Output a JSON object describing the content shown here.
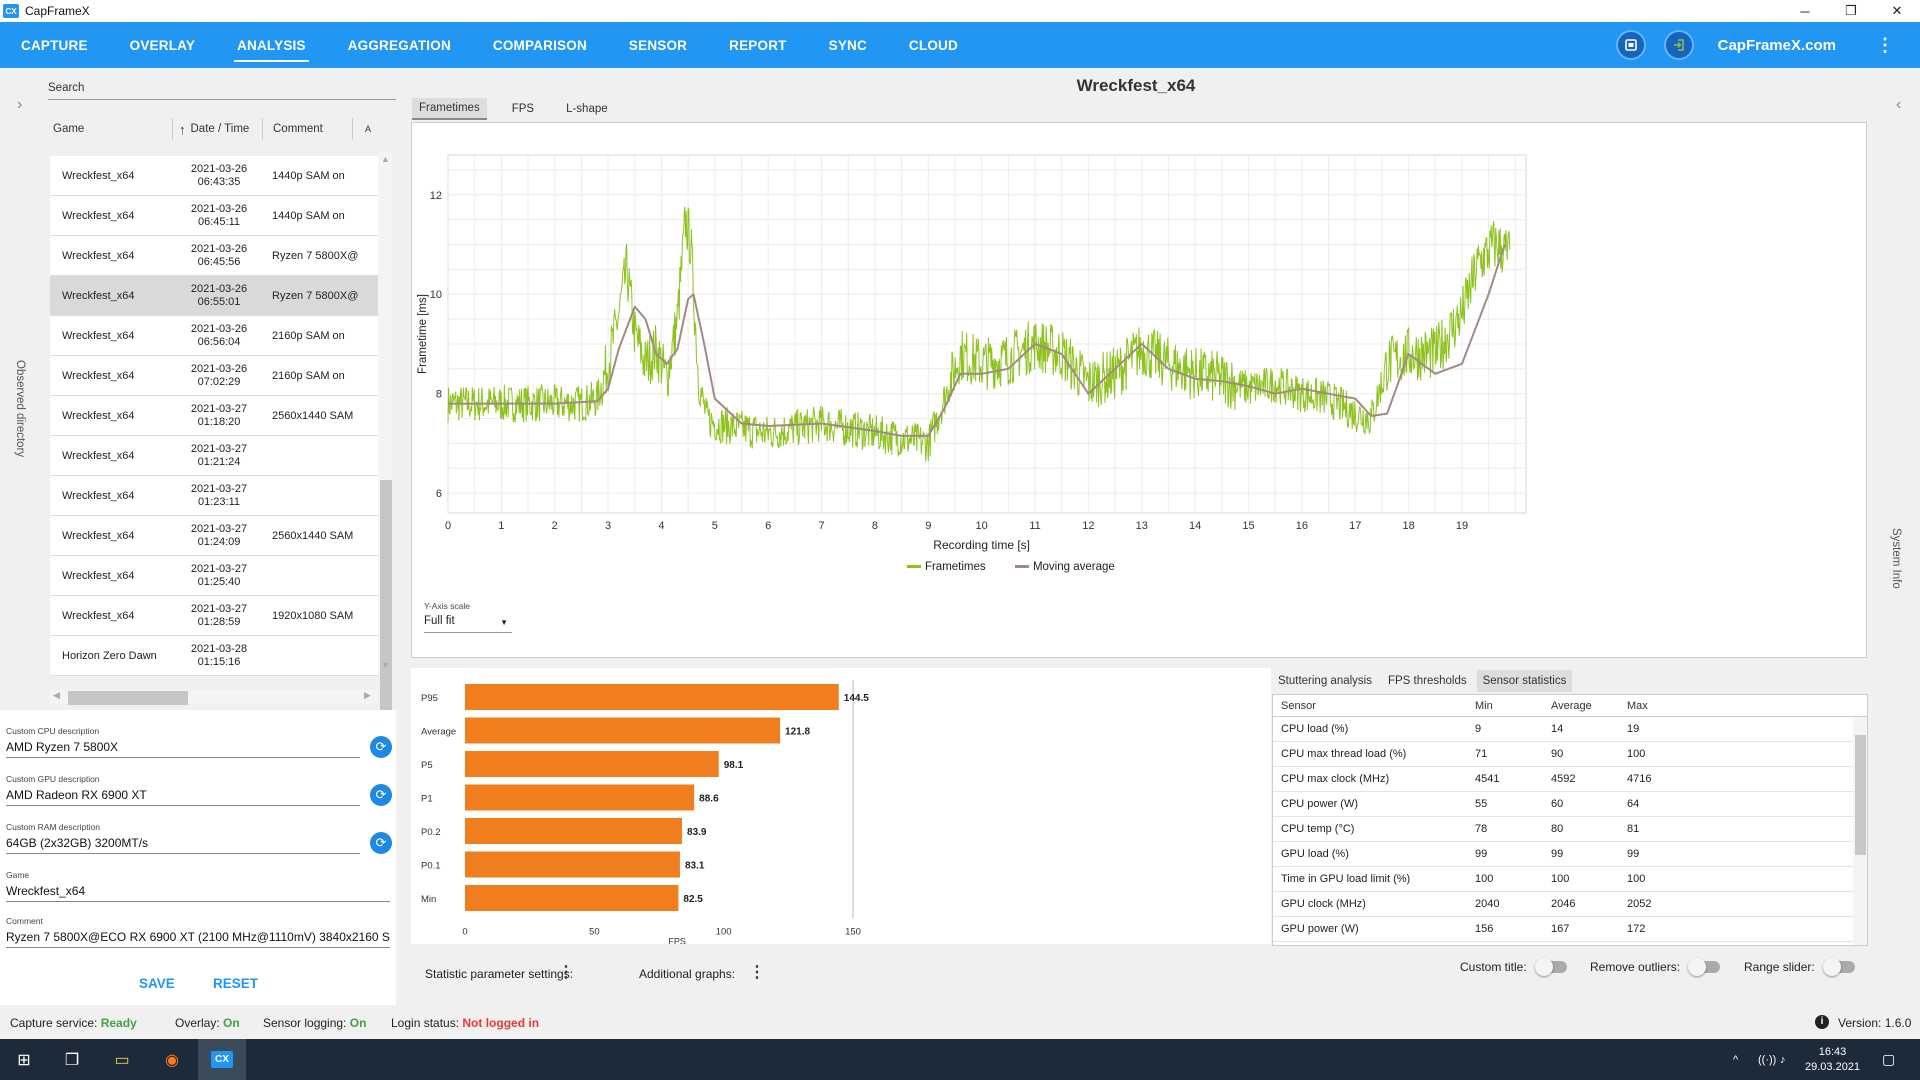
{
  "window": {
    "logo_text": "CX",
    "title": "CapFrameX",
    "min": "─",
    "max": "❐",
    "close": "✕"
  },
  "nav": {
    "tabs": [
      "CAPTURE",
      "OVERLAY",
      "ANALYSIS",
      "AGGREGATION",
      "COMPARISON",
      "SENSOR",
      "REPORT",
      "SYNC",
      "CLOUD"
    ],
    "active": "ANALYSIS",
    "site": "CapFrameX.com",
    "kebab": "⋮"
  },
  "left_strip": {
    "chevron": "›",
    "label": "Observed directory"
  },
  "right_strip": {
    "chevron": "‹",
    "label": "System Info"
  },
  "list": {
    "search_placeholder": "Search",
    "headers": {
      "game": "Game",
      "date": "Date / Time",
      "comment": "Comment",
      "more": "A",
      "sort_arrow": "↑"
    },
    "rows": [
      {
        "game": "Wreckfest_x64",
        "date": "2021-03-26",
        "time": "06:43:35",
        "comment": "1440p SAM on"
      },
      {
        "game": "Wreckfest_x64",
        "date": "2021-03-26",
        "time": "06:45:11",
        "comment": "1440p SAM on"
      },
      {
        "game": "Wreckfest_x64",
        "date": "2021-03-26",
        "time": "06:45:56",
        "comment": "Ryzen 7 5800X@"
      },
      {
        "game": "Wreckfest_x64",
        "date": "2021-03-26",
        "time": "06:55:01",
        "comment": "Ryzen 7 5800X@",
        "selected": true
      },
      {
        "game": "Wreckfest_x64",
        "date": "2021-03-26",
        "time": "06:56:04",
        "comment": "2160p SAM on"
      },
      {
        "game": "Wreckfest_x64",
        "date": "2021-03-26",
        "time": "07:02:29",
        "comment": "2160p SAM on"
      },
      {
        "game": "Wreckfest_x64",
        "date": "2021-03-27",
        "time": "01:18:20",
        "comment": "2560x1440 SAM"
      },
      {
        "game": "Wreckfest_x64",
        "date": "2021-03-27",
        "time": "01:21:24",
        "comment": ""
      },
      {
        "game": "Wreckfest_x64",
        "date": "2021-03-27",
        "time": "01:23:11",
        "comment": ""
      },
      {
        "game": "Wreckfest_x64",
        "date": "2021-03-27",
        "time": "01:24:09",
        "comment": "2560x1440 SAM"
      },
      {
        "game": "Wreckfest_x64",
        "date": "2021-03-27",
        "time": "01:25:40",
        "comment": ""
      },
      {
        "game": "Wreckfest_x64",
        "date": "2021-03-27",
        "time": "01:28:59",
        "comment": "1920x1080 SAM"
      },
      {
        "game": "Horizon Zero Dawn",
        "date": "2021-03-28",
        "time": "01:15:16",
        "comment": ""
      }
    ]
  },
  "form": {
    "cpu_label": "Custom CPU description",
    "cpu_value": "AMD Ryzen 7 5800X",
    "gpu_label": "Custom GPU description",
    "gpu_value": "AMD Radeon RX 6900 XT",
    "ram_label": "Custom RAM description",
    "ram_value": "64GB (2x32GB) 3200MT/s",
    "game_label": "Game",
    "game_value": "Wreckfest_x64",
    "comment_label": "Comment",
    "comment_value": "Ryzen 7 5800X@ECO RX 6900 XT (2100 MHz@1110mV) 3840x2160 SAM",
    "save": "SAVE",
    "reset": "RESET",
    "refresh_icon": "⟳"
  },
  "main": {
    "title": "Wreckfest_x64",
    "tabs": [
      "Frametimes",
      "FPS",
      "L-shape"
    ],
    "active_tab": "Frametimes",
    "yaxis_scale_label": "Y-Axis scale",
    "yaxis_scale_value": "Full fit"
  },
  "chart_data": [
    {
      "type": "line",
      "title": "",
      "xlabel": "Recording time [s]",
      "ylabel": "Frametime [ms]",
      "xlim": [
        0,
        20.2
      ],
      "ylim": [
        5.6,
        12.8
      ],
      "xticks": [
        0,
        1,
        2,
        3,
        4,
        5,
        6,
        7,
        8,
        9,
        10,
        11,
        12,
        13,
        14,
        15,
        16,
        17,
        18,
        19
      ],
      "yticks": [
        6,
        8,
        10,
        12
      ],
      "grid": true,
      "legend_position": "bottom-center",
      "series": [
        {
          "name": "Frametimes",
          "color": "#8dc21f",
          "x": [
            0,
            0.5,
            1,
            1.5,
            2,
            2.5,
            2.8,
            3.0,
            3.2,
            3.35,
            3.5,
            3.7,
            3.9,
            4.1,
            4.3,
            4.45,
            4.55,
            4.7,
            4.85,
            5.0,
            5.5,
            6,
            6.5,
            7,
            7.5,
            8,
            8.5,
            9.0,
            9.3,
            9.6,
            10,
            10.5,
            11,
            11.5,
            12,
            12.5,
            13,
            13.5,
            14,
            14.5,
            15,
            15.5,
            16,
            16.5,
            17,
            17.3,
            17.6,
            18,
            18.5,
            19,
            19.3,
            19.6,
            19.9
          ],
          "y": [
            7.8,
            7.8,
            7.8,
            7.8,
            7.8,
            7.8,
            7.9,
            8.6,
            9.6,
            10.5,
            9.2,
            8.6,
            8.9,
            8.3,
            9.5,
            11.5,
            11.0,
            8.2,
            7.5,
            7.4,
            7.3,
            7.2,
            7.3,
            7.4,
            7.3,
            7.2,
            7.1,
            7.0,
            7.9,
            8.8,
            8.6,
            8.7,
            9.0,
            8.8,
            8.2,
            8.4,
            8.9,
            8.6,
            8.4,
            8.3,
            8.1,
            8.2,
            8.0,
            7.9,
            7.6,
            7.5,
            8.6,
            8.8,
            8.8,
            9.6,
            10.6,
            11.0,
            10.8
          ]
        },
        {
          "name": "Moving average",
          "color": "#a18a84",
          "x": [
            0,
            1,
            2,
            2.8,
            3.0,
            3.2,
            3.5,
            3.7,
            3.9,
            4.1,
            4.3,
            4.5,
            4.6,
            4.8,
            5.0,
            5.5,
            6,
            7,
            8,
            8.5,
            9.0,
            9.3,
            9.6,
            10,
            10.5,
            11,
            11.5,
            12,
            12.5,
            13,
            13.5,
            14,
            14.5,
            15,
            15.5,
            16,
            16.5,
            17,
            17.3,
            17.6,
            18,
            18.5,
            19,
            19.5,
            19.8
          ],
          "y": [
            7.8,
            7.8,
            7.8,
            7.85,
            8.1,
            8.9,
            9.75,
            9.5,
            8.8,
            8.6,
            8.9,
            9.9,
            10.0,
            9.0,
            7.9,
            7.4,
            7.35,
            7.4,
            7.25,
            7.15,
            7.15,
            7.7,
            8.4,
            8.4,
            8.5,
            9.0,
            8.8,
            8.0,
            8.5,
            9.0,
            8.5,
            8.3,
            8.25,
            8.15,
            8.0,
            8.1,
            8.0,
            7.9,
            7.55,
            7.6,
            8.8,
            8.4,
            8.6,
            10.0,
            11.0
          ]
        }
      ]
    },
    {
      "type": "bar",
      "orientation": "horizontal",
      "title": "",
      "xlabel": "FPS",
      "xlim": [
        0,
        150
      ],
      "xticks": [
        0,
        50,
        100,
        150
      ],
      "categories": [
        "P95",
        "Average",
        "P5",
        "P1",
        "P0.2",
        "P0.1",
        "Min"
      ],
      "values": [
        144.5,
        121.8,
        98.1,
        88.6,
        83.9,
        83.1,
        82.5
      ],
      "color": "#f07d1e"
    }
  ],
  "stats": {
    "tabs": [
      "Stuttering analysis",
      "FPS thresholds",
      "Sensor statistics"
    ],
    "active_tab": "Sensor statistics",
    "headers": [
      "Sensor",
      "Min",
      "Average",
      "Max"
    ],
    "rows": [
      [
        "CPU load (%)",
        "9",
        "14",
        "19"
      ],
      [
        "CPU max thread load (%)",
        "71",
        "90",
        "100"
      ],
      [
        "CPU max clock (MHz)",
        "4541",
        "4592",
        "4716"
      ],
      [
        "CPU power (W)",
        "55",
        "60",
        "64"
      ],
      [
        "CPU temp (°C)",
        "78",
        "80",
        "81"
      ],
      [
        "GPU load (%)",
        "99",
        "99",
        "99"
      ],
      [
        "Time in GPU load limit (%)",
        "100",
        "100",
        "100"
      ],
      [
        "GPU clock (MHz)",
        "2040",
        "2046",
        "2052"
      ],
      [
        "GPU power (W)",
        "156",
        "167",
        "172"
      ]
    ]
  },
  "params": {
    "statistic": "Statistic parameter settings:",
    "additional": "Additional graphs:",
    "custom_title": "Custom title:",
    "remove_outliers": "Remove outliers:",
    "range_slider": "Range slider:",
    "dots": "⋮"
  },
  "status": {
    "capture_label": "Capture service:",
    "capture_value": "Ready",
    "overlay_label": "Overlay:",
    "overlay_value": "On",
    "sensor_label": "Sensor logging:",
    "sensor_value": "On",
    "login_label": "Login status:",
    "login_value": "Not logged in",
    "version": "Version: 1.6.0",
    "info_icon": "i"
  },
  "taskbar": {
    "time": "16:43",
    "date": "29.03.2021",
    "start_icon": "⊞",
    "task_view_icon": "❐",
    "explorer_icon": "▭",
    "firefox_icon": "◉",
    "cx_label": "CX",
    "tray_chevron": "^",
    "tray_network": "((·))",
    "tray_sound": "♪",
    "notification_icon": "▢"
  },
  "colors": {
    "accent": "#2196f3",
    "bar": "#f07d1e",
    "frametimes": "#8dc21f",
    "moving_avg": "#a18a84",
    "ready": "#43a047",
    "not_logged": "#e53935"
  }
}
